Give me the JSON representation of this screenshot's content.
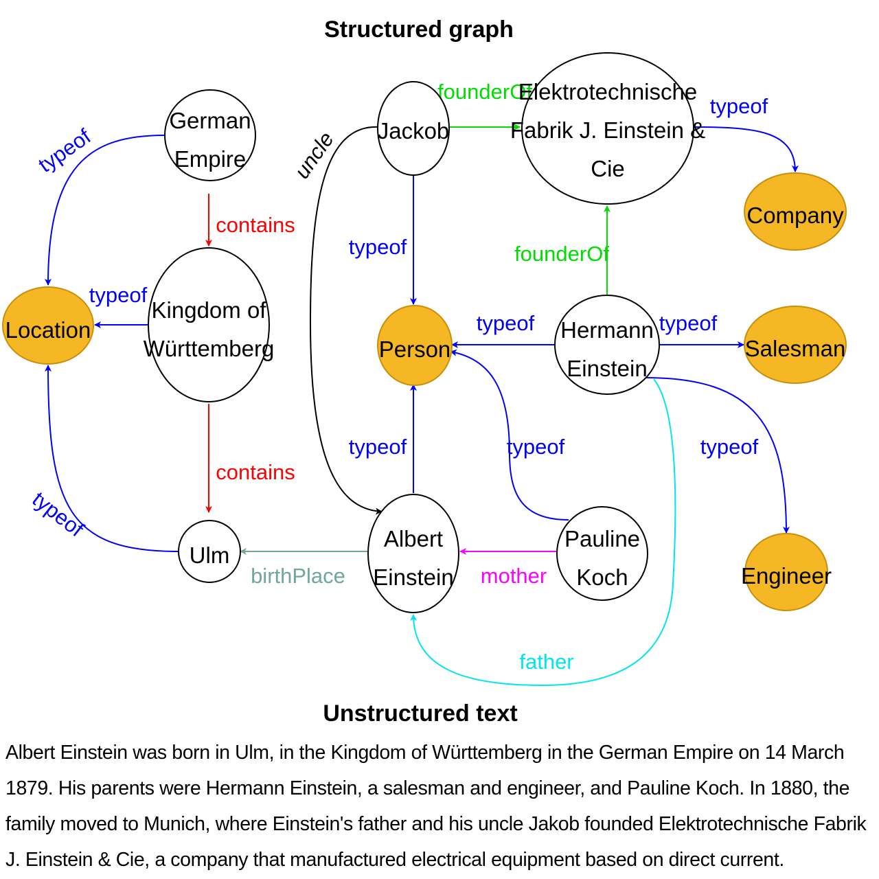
{
  "titles": {
    "graph": "Structured graph",
    "text": "Unstructured text"
  },
  "colors": {
    "type_node_fill": "#f5b824",
    "type_node_stroke": "#c98f0a",
    "typeof": "#0000ff",
    "contains": "#ff0000",
    "founderOf": "#00dd00",
    "uncle": "#000000",
    "birthPlace": "#6fa89a",
    "mother": "#ff00ff",
    "father": "#00e5ee"
  },
  "nodes": {
    "german_empire": [
      "German",
      "Empire"
    ],
    "kingdom": [
      "Kingdom of",
      "Württemberg"
    ],
    "ulm": [
      "Ulm"
    ],
    "location": [
      "Location"
    ],
    "jackob": [
      "Jackob"
    ],
    "fabrik": [
      "Elektrotechnische",
      "Fabrik J. Einstein &",
      "Cie"
    ],
    "company": [
      "Company"
    ],
    "person": [
      "Person"
    ],
    "hermann": [
      "Hermann",
      "Einstein"
    ],
    "salesman": [
      "Salesman"
    ],
    "engineer": [
      "Engineer"
    ],
    "albert": [
      "Albert",
      "Einstein"
    ],
    "pauline": [
      "Pauline",
      "Koch"
    ]
  },
  "edge_labels": {
    "typeof": "typeof",
    "contains": "contains",
    "founderOf": "founderOf",
    "uncle": "uncle",
    "birthPlace": "birthPlace",
    "mother": "mother",
    "father": "father"
  },
  "paragraph": "Albert Einstein was born in Ulm, in the Kingdom of Württemberg in the German Empire on 14 March 1879. His parents were Hermann Einstein, a salesman and engineer, and Pauline Koch. In 1880, the family moved to Munich, where Einstein's father and his uncle Jakob founded Elektrotechnische Fabrik J. Einstein & Cie, a company that manufactured electrical equipment based on direct current."
}
